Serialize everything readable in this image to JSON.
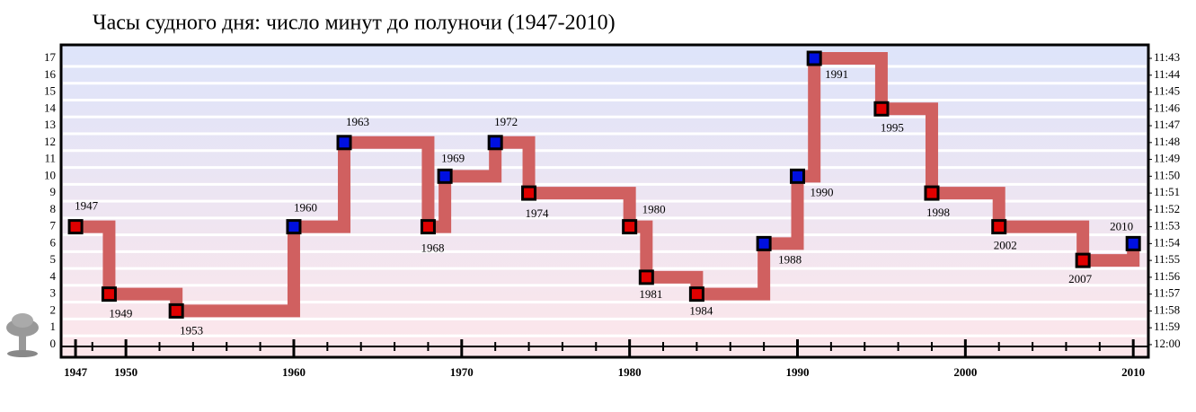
{
  "chart_data": {
    "type": "step",
    "title": "Часы судного дня: число минут до полуночи (1947-2010)",
    "x": [
      1947,
      1949,
      1953,
      1960,
      1963,
      1968,
      1969,
      1972,
      1974,
      1980,
      1981,
      1984,
      1988,
      1990,
      1991,
      1995,
      1998,
      2002,
      2007,
      2010
    ],
    "values": [
      7,
      3,
      2,
      7,
      12,
      7,
      10,
      12,
      9,
      7,
      4,
      3,
      6,
      10,
      17,
      14,
      9,
      7,
      5,
      6
    ],
    "line_color": "#d06060",
    "marker_colors": [
      "#e00000",
      "#e00000",
      "#e00000",
      "#0010e0",
      "#0010e0",
      "#e00000",
      "#0010e0",
      "#0010e0",
      "#e00000",
      "#e00000",
      "#e00000",
      "#e00000",
      "#0010e0",
      "#0010e0",
      "#0010e0",
      "#e00000",
      "#e00000",
      "#e00000",
      "#e00000",
      "#0010e0"
    ],
    "xlim": [
      1946.14,
      2010.9
    ],
    "xticks": [
      1947,
      1950,
      1960,
      1970,
      1980,
      1990,
      2000,
      2010
    ],
    "xminorticks": [
      1948,
      1952,
      1954,
      1956,
      1958,
      1962,
      1964,
      1966,
      1968,
      1972,
      1974,
      1976,
      1978,
      1982,
      1984,
      1986,
      1988,
      1992,
      1994,
      1996,
      1998,
      2002,
      2004,
      2006,
      2008
    ],
    "ylim": [
      -0.75,
      17.8
    ],
    "yticks": [
      0,
      1,
      2,
      3,
      4,
      5,
      6,
      7,
      8,
      9,
      10,
      11,
      12,
      13,
      14,
      15,
      16,
      17
    ],
    "y2lim": [
      -0.75,
      17.8
    ],
    "y2ticks": [
      {
        "value": 0,
        "label": "12:00"
      },
      {
        "value": 1,
        "label": "11:59"
      },
      {
        "value": 2,
        "label": "11:58"
      },
      {
        "value": 3,
        "label": "11:57"
      },
      {
        "value": 4,
        "label": "11:56"
      },
      {
        "value": 5,
        "label": "11:55"
      },
      {
        "value": 6,
        "label": "11:54"
      },
      {
        "value": 7,
        "label": "11:53"
      },
      {
        "value": 8,
        "label": "11:52"
      },
      {
        "value": 9,
        "label": "11:51"
      },
      {
        "value": 10,
        "label": "11:50"
      },
      {
        "value": 11,
        "label": "11:49"
      },
      {
        "value": 12,
        "label": "11:48"
      },
      {
        "value": 13,
        "label": "11:47"
      },
      {
        "value": 14,
        "label": "11:46"
      },
      {
        "value": 15,
        "label": "11:45"
      },
      {
        "value": 16,
        "label": "11:44"
      },
      {
        "value": 17,
        "label": "11:43"
      }
    ],
    "grid": true
  }
}
